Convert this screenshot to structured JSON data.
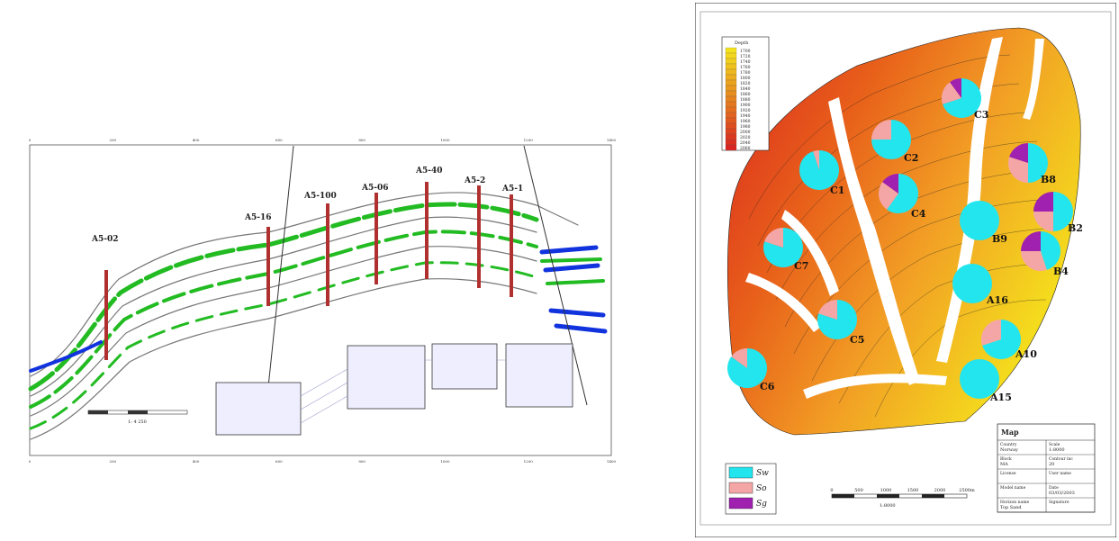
{
  "cross_section": {
    "wells": [
      {
        "name": "A5-02"
      },
      {
        "name": "A5-16"
      },
      {
        "name": "A5-100"
      },
      {
        "name": "A5-06"
      },
      {
        "name": "A5-40"
      },
      {
        "name": "A5-2"
      },
      {
        "name": "A5-1"
      }
    ],
    "x_ticks": [
      "0",
      "200",
      "400",
      "600",
      "800",
      "1000",
      "1200",
      "1400"
    ],
    "scale_label": "1: 4 250",
    "colors": {
      "sand": "#22bb22",
      "water": "#1133dd",
      "well": "#b03030"
    }
  },
  "map": {
    "title": "Map",
    "legend_title": "Depth",
    "depth_values": [
      "1700",
      "1720",
      "1740",
      "1760",
      "1780",
      "1800",
      "1820",
      "1840",
      "1860",
      "1880",
      "1900",
      "1920",
      "1940",
      "1960",
      "1980",
      "2000",
      "2020",
      "2040",
      "2060"
    ],
    "legend_items": [
      {
        "label": "Sw",
        "color": "#22e5ee"
      },
      {
        "label": "So",
        "color": "#f4a6a6"
      },
      {
        "label": "Sg",
        "color": "#a020b0"
      }
    ],
    "wells": [
      {
        "name": "C3",
        "sw": 0.7,
        "so": 0.2,
        "sg": 0.1
      },
      {
        "name": "C2",
        "sw": 0.75,
        "so": 0.25,
        "sg": 0.0
      },
      {
        "name": "B8",
        "sw": 0.5,
        "so": 0.3,
        "sg": 0.2
      },
      {
        "name": "C1",
        "sw": 0.95,
        "so": 0.05,
        "sg": 0.0
      },
      {
        "name": "C4",
        "sw": 0.6,
        "so": 0.25,
        "sg": 0.15
      },
      {
        "name": "B2",
        "sw": 0.5,
        "so": 0.25,
        "sg": 0.25
      },
      {
        "name": "B9",
        "sw": 1.0,
        "so": 0.0,
        "sg": 0.0
      },
      {
        "name": "C7",
        "sw": 0.8,
        "so": 0.2,
        "sg": 0.0
      },
      {
        "name": "B4",
        "sw": 0.45,
        "so": 0.3,
        "sg": 0.25
      },
      {
        "name": "A16",
        "sw": 1.0,
        "so": 0.0,
        "sg": 0.0
      },
      {
        "name": "C5",
        "sw": 0.8,
        "so": 0.2,
        "sg": 0.0
      },
      {
        "name": "A10",
        "sw": 0.7,
        "so": 0.3,
        "sg": 0.0
      },
      {
        "name": "C6",
        "sw": 0.85,
        "so": 0.15,
        "sg": 0.0
      },
      {
        "name": "A15",
        "sw": 1.0,
        "so": 0.0,
        "sg": 0.0
      }
    ],
    "scale_ticks": [
      "0",
      "500",
      "1000",
      "1500",
      "2000",
      "2500m"
    ],
    "scale_ratio": "1:8000",
    "info_box": {
      "rows": [
        [
          "Country",
          "Scale"
        ],
        [
          "Block",
          "Contour inc"
        ],
        [
          "License",
          "User name"
        ],
        [
          "Model name",
          "Date"
        ],
        [
          "Horizon name",
          "Signature"
        ]
      ],
      "values": [
        [
          "Norway",
          "1:8000"
        ],
        [
          "MA",
          "20"
        ],
        [
          "",
          ""
        ],
        [
          "",
          "03/03/2003"
        ],
        [
          "Top Sand",
          ""
        ]
      ]
    }
  }
}
